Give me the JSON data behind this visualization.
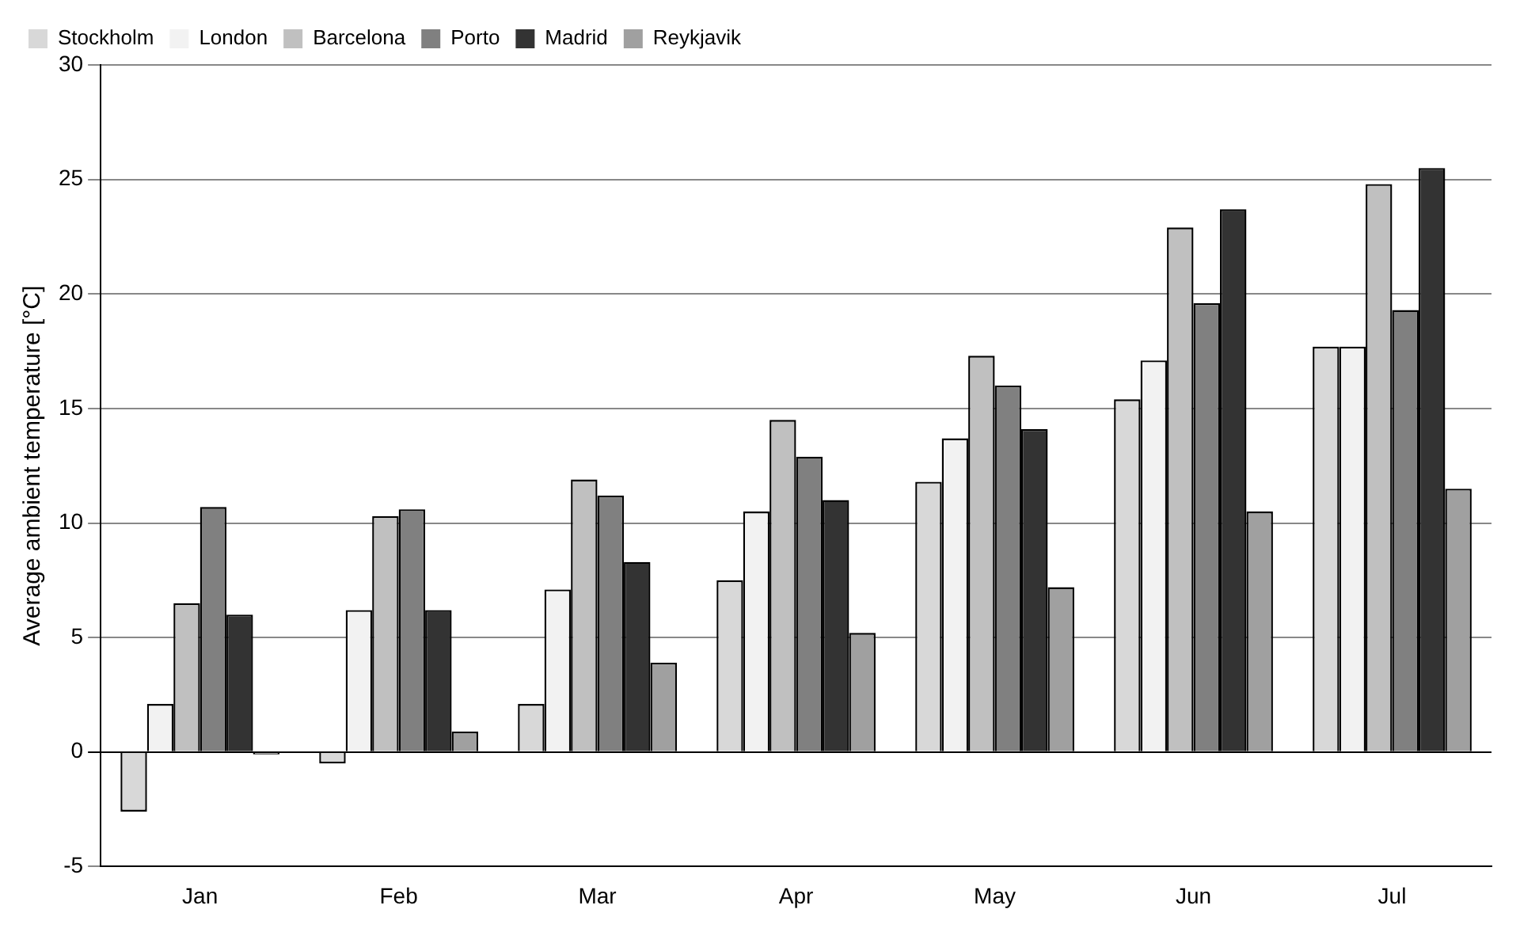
{
  "chart_data": {
    "type": "bar",
    "ylabel": "Average ambient temperature [°C]",
    "categories": [
      "Jan",
      "Feb",
      "Mar",
      "Apr",
      "May",
      "Jun",
      "Jul"
    ],
    "series": [
      {
        "name": "Stockholm",
        "color": "#d8d8d8",
        "values": [
          -2.6,
          -0.5,
          2.1,
          7.5,
          11.8,
          15.4,
          17.7
        ]
      },
      {
        "name": "London",
        "color": "#f2f2f2",
        "values": [
          2.1,
          6.2,
          7.1,
          10.5,
          13.7,
          17.1,
          17.7
        ]
      },
      {
        "name": "Barcelona",
        "color": "#c0c0c0",
        "values": [
          6.5,
          10.3,
          11.9,
          14.5,
          17.3,
          22.9,
          24.8
        ]
      },
      {
        "name": "Porto",
        "color": "#808080",
        "values": [
          10.7,
          10.6,
          11.2,
          12.9,
          16.0,
          19.6,
          19.3
        ]
      },
      {
        "name": "Madrid",
        "color": "#333333",
        "values": [
          6.0,
          6.2,
          8.3,
          11.0,
          14.1,
          23.7,
          25.5
        ]
      },
      {
        "name": "Reykjavik",
        "color": "#a0a0a0",
        "values": [
          -0.1,
          0.9,
          3.9,
          5.2,
          7.2,
          10.5,
          11.5
        ]
      }
    ],
    "ylim": [
      -5,
      30
    ],
    "yticks": [
      -5,
      0,
      5,
      10,
      15,
      20,
      25,
      30
    ],
    "grid": "y",
    "legend": "top left"
  }
}
